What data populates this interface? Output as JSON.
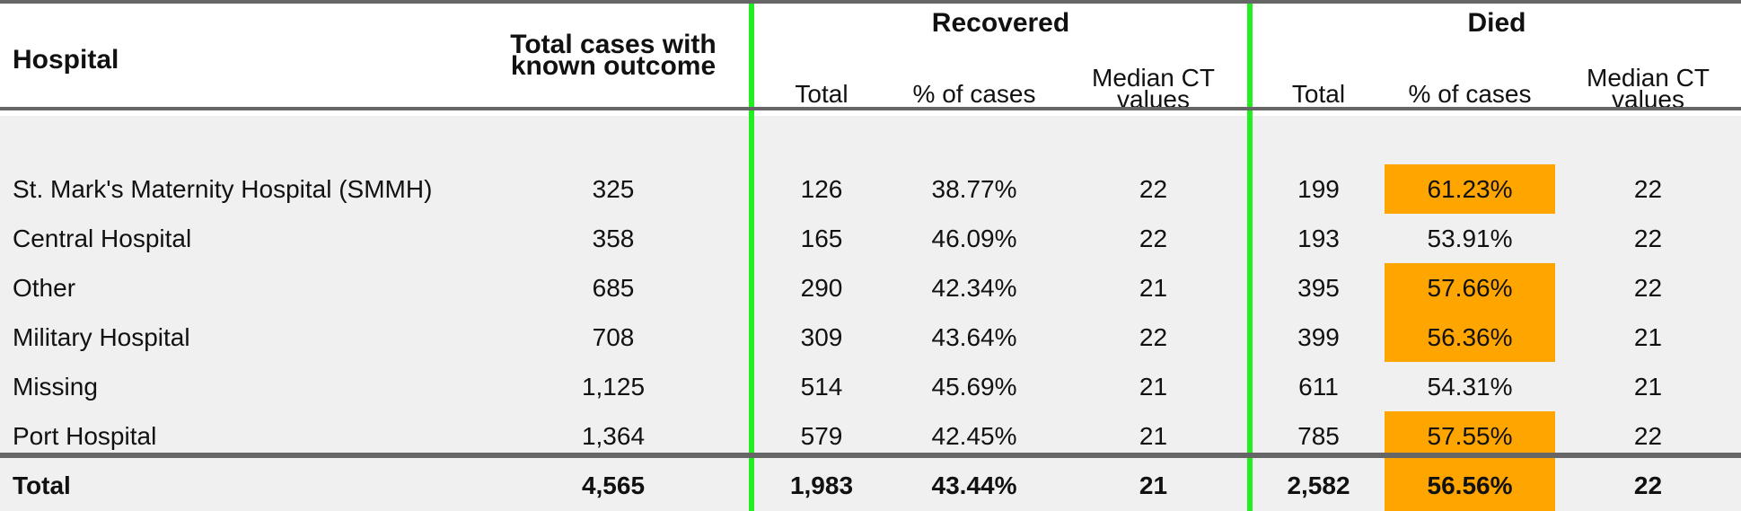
{
  "table": {
    "group_headers": {
      "recovered": "Recovered",
      "died": "Died"
    },
    "headers": {
      "hospital": "Hospital",
      "total_cases_line1": "Total cases with",
      "total_cases_line2": "known outcome",
      "rec_total": "Total",
      "rec_pct": "% of cases",
      "rec_median_line1": "Median CT",
      "rec_median_line2": "values",
      "died_total": "Total",
      "died_pct": "% of cases",
      "died_median_line1": "Median CT",
      "died_median_line2": "values"
    },
    "rows": [
      {
        "hospital": "St. Mark's Maternity Hospital (SMMH)",
        "total": "325",
        "rec_total": "126",
        "rec_pct": "38.77%",
        "rec_median": "22",
        "died_total": "199",
        "died_pct": "61.23%",
        "died_median": "22",
        "highlight": true
      },
      {
        "hospital": "Central Hospital",
        "total": "358",
        "rec_total": "165",
        "rec_pct": "46.09%",
        "rec_median": "22",
        "died_total": "193",
        "died_pct": "53.91%",
        "died_median": "22",
        "highlight": false
      },
      {
        "hospital": "Other",
        "total": "685",
        "rec_total": "290",
        "rec_pct": "42.34%",
        "rec_median": "21",
        "died_total": "395",
        "died_pct": "57.66%",
        "died_median": "22",
        "highlight": true
      },
      {
        "hospital": "Military Hospital",
        "total": "708",
        "rec_total": "309",
        "rec_pct": "43.64%",
        "rec_median": "22",
        "died_total": "399",
        "died_pct": "56.36%",
        "died_median": "21",
        "highlight": true
      },
      {
        "hospital": "Missing",
        "total": "1,125",
        "rec_total": "514",
        "rec_pct": "45.69%",
        "rec_median": "21",
        "died_total": "611",
        "died_pct": "54.31%",
        "died_median": "21",
        "highlight": false
      },
      {
        "hospital": "Port Hospital",
        "total": "1,364",
        "rec_total": "579",
        "rec_pct": "42.45%",
        "rec_median": "21",
        "died_total": "785",
        "died_pct": "57.55%",
        "died_median": "22",
        "highlight": true
      },
      {
        "hospital": "Total",
        "total": "4,565",
        "rec_total": "1,983",
        "rec_pct": "43.44%",
        "rec_median": "21",
        "died_total": "2,582",
        "died_pct": "56.56%",
        "died_median": "22",
        "highlight": true
      }
    ],
    "colors": {
      "highlight": "#ffa500",
      "separator": "#22ee22",
      "row_bg": "#f0f0f0",
      "rule": "#666666"
    }
  }
}
